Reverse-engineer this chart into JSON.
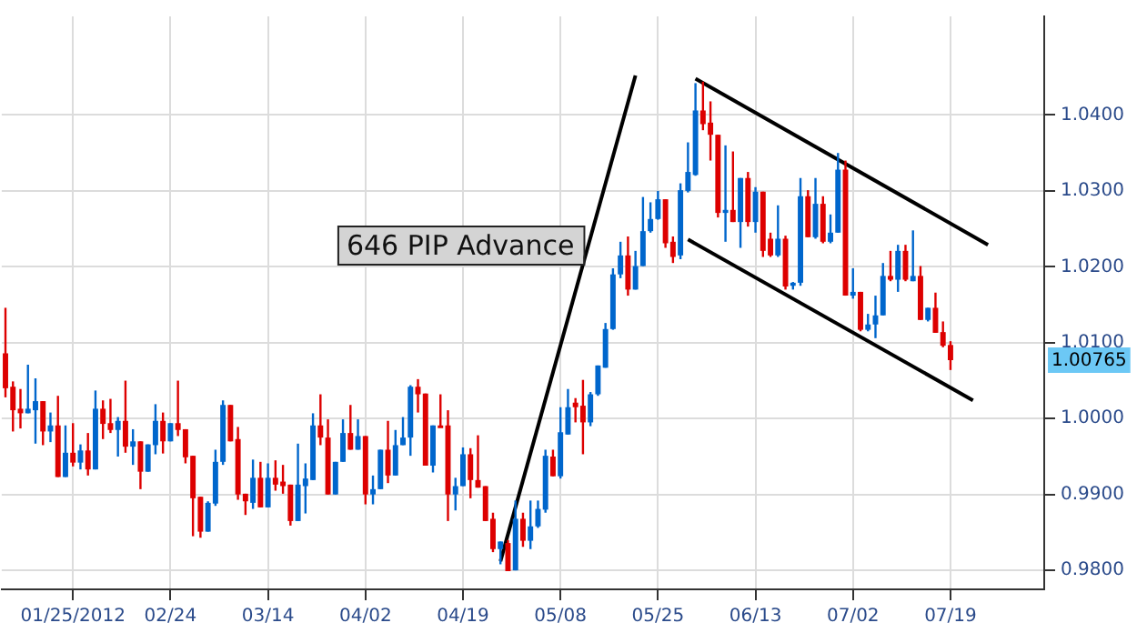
{
  "chart_data": {
    "type": "candlestick",
    "categories": [
      null,
      null,
      null,
      null,
      null,
      null,
      null,
      null,
      null,
      "01/25/2012",
      null,
      null,
      null,
      null,
      null,
      null,
      null,
      null,
      null,
      null,
      null,
      null,
      "02/24",
      null,
      null,
      null,
      null,
      null,
      null,
      null,
      null,
      null,
      null,
      null,
      null,
      "03/14",
      null,
      null,
      null,
      null,
      null,
      null,
      null,
      null,
      null,
      null,
      null,
      null,
      "04/02",
      null,
      null,
      null,
      null,
      null,
      null,
      null,
      null,
      null,
      null,
      null,
      null,
      "04/19",
      null,
      null,
      null,
      null,
      null,
      null,
      null,
      null,
      null,
      null,
      null,
      null,
      "05/08",
      null,
      null,
      null,
      null,
      null,
      null,
      null,
      null,
      null,
      null,
      null,
      null,
      "05/25",
      null,
      null,
      null,
      null,
      null,
      null,
      null,
      null,
      null,
      null,
      null,
      null,
      "06/13",
      null,
      null,
      null,
      null,
      null,
      null,
      null,
      null,
      null,
      null,
      null,
      null,
      "07/02",
      null,
      null,
      null,
      null,
      null,
      null,
      null,
      null,
      null,
      null,
      null,
      null,
      "07/19",
      null,
      null,
      null,
      null,
      null,
      null,
      null,
      null,
      null,
      null,
      null,
      null
    ],
    "ohlc": [
      [
        1.0086,
        1.0146,
        1.0028,
        1.004
      ],
      [
        1.0042,
        1.0049,
        0.9983,
        1.0011
      ],
      [
        1.0013,
        1.0039,
        0.9987,
        1.0007
      ],
      [
        1.0007,
        1.0071,
        1.0007,
        1.0013
      ],
      [
        1.0011,
        1.0053,
        0.9967,
        1.0023
      ],
      [
        1.0023,
        1.0023,
        0.9965,
        0.9983
      ],
      [
        0.9983,
        1.0008,
        0.9969,
        0.9991
      ],
      [
        0.9991,
        1.003,
        0.9923,
        0.9923
      ],
      [
        0.9923,
        0.9991,
        0.9923,
        0.9955
      ],
      [
        0.9955,
        0.9994,
        0.9937,
        0.9942
      ],
      [
        0.9942,
        0.9966,
        0.9933,
        0.9958
      ],
      [
        0.9958,
        0.9981,
        0.9925,
        0.9933
      ],
      [
        0.9933,
        1.0037,
        0.9933,
        1.0013
      ],
      [
        1.0013,
        1.0024,
        0.9973,
        0.9993
      ],
      [
        0.9994,
        1.0026,
        0.9981,
        0.9985
      ],
      [
        0.9985,
        1.0002,
        0.995,
        0.9997
      ],
      [
        0.9997,
        1.005,
        0.9955,
        0.9963
      ],
      [
        0.9963,
        0.9986,
        0.9939,
        0.997
      ],
      [
        0.997,
        0.997,
        0.9907,
        0.993
      ],
      [
        0.993,
        0.9966,
        0.993,
        0.9966
      ],
      [
        0.9965,
        1.0019,
        0.9953,
        0.9997
      ],
      [
        0.9997,
        1.0008,
        0.9954,
        0.997
      ],
      [
        0.997,
        0.9994,
        0.997,
        0.9994
      ],
      [
        0.9994,
        1.005,
        0.9977,
        0.9985
      ],
      [
        0.9986,
        0.9986,
        0.9941,
        0.9949
      ],
      [
        0.9951,
        0.9951,
        0.9845,
        0.9895
      ],
      [
        0.9897,
        0.9897,
        0.9843,
        0.9851
      ],
      [
        0.9851,
        0.9891,
        0.9851,
        0.9889
      ],
      [
        0.9888,
        0.9959,
        0.9885,
        0.9943
      ],
      [
        0.9943,
        1.0024,
        0.9939,
        1.0018
      ],
      [
        1.0018,
        1.0018,
        0.997,
        0.997
      ],
      [
        0.9973,
        0.9989,
        0.9893,
        0.99
      ],
      [
        0.9901,
        0.9901,
        0.9873,
        0.9891
      ],
      [
        0.9889,
        0.9946,
        0.9881,
        0.9922
      ],
      [
        0.9922,
        0.9943,
        0.9883,
        0.9883
      ],
      [
        0.9883,
        0.9941,
        0.9883,
        0.9922
      ],
      [
        0.9922,
        0.9945,
        0.9905,
        0.9913
      ],
      [
        0.9917,
        0.9939,
        0.9901,
        0.9911
      ],
      [
        0.9913,
        0.9913,
        0.9859,
        0.9865
      ],
      [
        0.9865,
        0.9967,
        0.9865,
        0.9913
      ],
      [
        0.9911,
        0.9941,
        0.9875,
        0.9921
      ],
      [
        0.9919,
        1.0007,
        0.9919,
        0.9991
      ],
      [
        0.9991,
        1.0032,
        0.9965,
        0.9975
      ],
      [
        0.9975,
        0.9999,
        0.99,
        0.99
      ],
      [
        0.99,
        0.9943,
        0.99,
        0.9943
      ],
      [
        0.9943,
        0.9999,
        0.9943,
        0.9981
      ],
      [
        0.9981,
        1.0018,
        0.9959,
        0.9959
      ],
      [
        0.9959,
        0.9999,
        0.9959,
        0.9977
      ],
      [
        0.9977,
        0.9977,
        0.9887,
        0.99
      ],
      [
        0.99,
        0.9925,
        0.9887,
        0.9907
      ],
      [
        0.9907,
        0.9959,
        0.9907,
        0.9959
      ],
      [
        0.9959,
        0.9997,
        0.9915,
        0.9925
      ],
      [
        0.9925,
        0.9985,
        0.9925,
        0.9965
      ],
      [
        0.9965,
        1.0002,
        0.9965,
        0.9975
      ],
      [
        0.9975,
        1.0044,
        0.9951,
        1.0042
      ],
      [
        1.0042,
        1.0052,
        1.0008,
        1.0032
      ],
      [
        1.0033,
        1.0033,
        0.9938,
        0.9938
      ],
      [
        0.9938,
        0.9991,
        0.9929,
        0.9991
      ],
      [
        0.9991,
        1.0032,
        0.9989,
        0.9989
      ],
      [
        0.9991,
        1.0011,
        0.9865,
        0.99
      ],
      [
        0.99,
        0.9922,
        0.9879,
        0.9911
      ],
      [
        0.9911,
        0.9962,
        0.9911,
        0.9953
      ],
      [
        0.9953,
        0.9961,
        0.9895,
        0.9919
      ],
      [
        0.9919,
        0.9978,
        0.9909,
        0.9909
      ],
      [
        0.9911,
        0.9911,
        0.9865,
        0.9865
      ],
      [
        0.9868,
        0.9876,
        0.9824,
        0.9828
      ],
      [
        0.9828,
        0.9838,
        0.9808,
        0.9838
      ],
      [
        0.9836,
        0.984,
        0.9799,
        0.9799
      ],
      [
        0.98,
        0.9892,
        0.98,
        0.9868
      ],
      [
        0.9868,
        0.9876,
        0.9831,
        0.9839
      ],
      [
        0.9839,
        0.9892,
        0.9828,
        0.9858
      ],
      [
        0.9858,
        0.9892,
        0.9856,
        0.9881
      ],
      [
        0.988,
        0.9959,
        0.9876,
        0.9951
      ],
      [
        0.995,
        0.9959,
        0.9924,
        0.9924
      ],
      [
        0.9924,
        1.0015,
        0.9921,
        0.9982
      ],
      [
        0.9979,
        1.0039,
        0.9979,
        1.0015
      ],
      [
        1.0021,
        1.0027,
        0.9995,
        1.0015
      ],
      [
        1.0017,
        1.0051,
        0.9953,
        0.9995
      ],
      [
        0.9995,
        1.0035,
        0.999,
        1.0032
      ],
      [
        1.0032,
        1.007,
        1.003,
        1.007
      ],
      [
        1.0067,
        1.0126,
        1.0067,
        1.0118
      ],
      [
        1.0118,
        1.0198,
        1.0117,
        1.019
      ],
      [
        1.019,
        1.0233,
        1.0185,
        1.0215
      ],
      [
        1.0215,
        1.024,
        1.0162,
        1.017
      ],
      [
        1.017,
        1.0221,
        1.017,
        1.0201
      ],
      [
        1.0201,
        1.0292,
        1.0201,
        1.0247
      ],
      [
        1.0247,
        1.0285,
        1.0245,
        1.0263
      ],
      [
        1.0263,
        1.03,
        1.0262,
        1.0289
      ],
      [
        1.0289,
        1.0289,
        1.0225,
        1.0231
      ],
      [
        1.0233,
        1.024,
        1.0205,
        1.0213
      ],
      [
        1.0215,
        1.031,
        1.021,
        1.0301
      ],
      [
        1.03,
        1.0364,
        1.0298,
        1.0325
      ],
      [
        1.0321,
        1.0442,
        1.032,
        1.0406
      ],
      [
        1.0406,
        1.0444,
        1.038,
        1.0388
      ],
      [
        1.039,
        1.0418,
        1.034,
        1.0374
      ],
      [
        1.0374,
        1.0374,
        1.0265,
        1.0271
      ],
      [
        1.0271,
        1.036,
        1.0233,
        1.0275
      ],
      [
        1.0275,
        1.0352,
        1.0259,
        1.0259
      ],
      [
        1.0259,
        1.0317,
        1.0225,
        1.0317
      ],
      [
        1.0317,
        1.0325,
        1.0253,
        1.0259
      ],
      [
        1.0259,
        1.0305,
        1.0245,
        1.0299
      ],
      [
        1.0299,
        1.0299,
        1.0213,
        1.0221
      ],
      [
        1.0237,
        1.0245,
        1.0213,
        1.0215
      ],
      [
        1.0215,
        1.0281,
        1.0213,
        1.0237
      ],
      [
        1.0237,
        1.0241,
        1.017,
        1.0174
      ],
      [
        1.0175,
        1.018,
        1.017,
        1.0179
      ],
      [
        1.0179,
        1.0317,
        1.0175,
        1.0293
      ],
      [
        1.0293,
        1.0301,
        1.0239,
        1.0239
      ],
      [
        1.0239,
        1.0317,
        1.0237,
        1.0283
      ],
      [
        1.0283,
        1.0293,
        1.0231,
        1.0233
      ],
      [
        1.0233,
        1.0269,
        1.0231,
        1.0245
      ],
      [
        1.0245,
        1.035,
        1.0245,
        1.0328
      ],
      [
        1.0328,
        1.034,
        1.0162,
        1.0162
      ],
      [
        1.0162,
        1.0198,
        1.0158,
        1.0167
      ],
      [
        1.0167,
        1.0167,
        1.0115,
        1.0117
      ],
      [
        1.0117,
        1.0138,
        1.0115,
        1.0124
      ],
      [
        1.0124,
        1.0162,
        1.0106,
        1.0136
      ],
      [
        1.0136,
        1.0205,
        1.0136,
        1.0188
      ],
      [
        1.0188,
        1.0221,
        1.0181,
        1.0183
      ],
      [
        1.0183,
        1.0229,
        1.0167,
        1.0221
      ],
      [
        1.0221,
        1.0229,
        1.0181,
        1.0183
      ],
      [
        1.0181,
        1.0248,
        1.0181,
        1.0188
      ],
      [
        1.0188,
        1.0201,
        1.013,
        1.013
      ],
      [
        1.013,
        1.0146,
        1.0128,
        1.0146
      ],
      [
        1.0146,
        1.0166,
        1.0113,
        1.0113
      ],
      [
        1.0114,
        1.0128,
        1.0094,
        1.0096
      ],
      [
        1.0097,
        1.0102,
        1.0064,
        1.0077
      ],
      null,
      null,
      null,
      null,
      null,
      null,
      null,
      null,
      null,
      null,
      null,
      null
    ],
    "colors": [
      "#dd0000",
      "#dd0000",
      "#dd0000",
      "#0066cc",
      "#0066cc",
      "#dd0000",
      "#0066cc",
      "#dd0000",
      "#0066cc",
      "#dd0000",
      "#0066cc",
      "#dd0000",
      "#0066cc",
      "#dd0000",
      "#dd0000",
      "#0066cc",
      "#dd0000",
      "#0066cc",
      "#dd0000",
      "#0066cc",
      "#0066cc",
      "#dd0000",
      "#0066cc",
      "#dd0000",
      "#dd0000",
      "#dd0000",
      "#dd0000",
      "#0066cc",
      "#0066cc",
      "#0066cc",
      "#dd0000",
      "#dd0000",
      "#dd0000",
      "#0066cc",
      "#dd0000",
      "#0066cc",
      "#dd0000",
      "#dd0000",
      "#dd0000",
      "#0066cc",
      "#0066cc",
      "#0066cc",
      "#dd0000",
      "#dd0000",
      "#0066cc",
      "#0066cc",
      "#dd0000",
      "#0066cc",
      "#dd0000",
      "#0066cc",
      "#0066cc",
      "#dd0000",
      "#0066cc",
      "#0066cc",
      "#0066cc",
      "#dd0000",
      "#dd0000",
      "#0066cc",
      "#dd0000",
      "#dd0000",
      "#0066cc",
      "#0066cc",
      "#dd0000",
      "#dd0000",
      "#dd0000",
      "#dd0000",
      "#0066cc",
      "#dd0000",
      "#0066cc",
      "#dd0000",
      "#0066cc",
      "#0066cc",
      "#0066cc",
      "#dd0000",
      "#0066cc",
      "#0066cc",
      "#dd0000",
      "#dd0000",
      "#0066cc",
      "#0066cc",
      "#0066cc",
      "#0066cc",
      "#0066cc",
      "#dd0000",
      "#0066cc",
      "#0066cc",
      "#0066cc",
      "#0066cc",
      "#dd0000",
      "#dd0000",
      "#0066cc",
      "#0066cc",
      "#0066cc",
      "#dd0000",
      "#dd0000",
      "#dd0000",
      "#0066cc",
      "#dd0000",
      "#0066cc",
      "#dd0000",
      "#0066cc",
      "#dd0000",
      "#dd0000",
      "#0066cc",
      "#dd0000",
      "#0066cc",
      "#0066cc",
      "#dd0000",
      "#0066cc",
      "#dd0000",
      "#0066cc",
      "#0066cc",
      "#dd0000",
      "#0066cc",
      "#dd0000",
      "#0066cc",
      "#0066cc",
      "#0066cc",
      "#dd0000",
      "#0066cc",
      "#dd0000",
      "#0066cc",
      "#dd0000",
      "#0066cc",
      "#dd0000",
      "#dd0000",
      "#dd0000",
      null,
      null,
      null,
      null,
      null,
      null,
      null,
      null,
      null,
      null,
      null,
      null
    ],
    "series": [
      {
        "type": "line",
        "color": "#000000",
        "values": [
          null,
          null,
          null,
          null,
          null,
          null,
          null,
          null,
          null,
          null,
          null,
          null,
          null,
          null,
          null,
          null,
          null,
          null,
          null,
          null,
          null,
          null,
          null,
          null,
          null,
          null,
          null,
          null,
          null,
          null,
          null,
          null,
          null,
          null,
          null,
          null,
          null,
          null,
          null,
          null,
          null,
          null,
          null,
          null,
          null,
          null,
          null,
          null,
          null,
          null,
          null,
          null,
          null,
          null,
          null,
          null,
          null,
          null,
          null,
          null,
          null,
          null,
          null,
          null,
          null,
          null,
          0.9812,
          null,
          null,
          null,
          null,
          null,
          null,
          null,
          null,
          null,
          null,
          null,
          null,
          null,
          null,
          null,
          null,
          null,
          1.0452,
          null,
          null,
          null,
          null,
          null,
          null,
          null,
          null,
          null,
          null,
          null,
          null,
          null,
          null,
          null,
          null,
          null,
          null,
          null,
          null,
          null,
          null,
          null,
          null,
          null,
          null,
          null,
          null,
          null,
          null,
          null,
          null,
          null,
          null,
          null,
          null,
          null,
          null,
          null,
          null,
          null,
          null,
          null,
          null,
          null,
          null,
          null,
          null,
          null,
          null,
          null,
          null,
          null,
          null
        ]
      },
      {
        "type": "line",
        "color": "#000000",
        "values": [
          null,
          null,
          null,
          null,
          null,
          null,
          null,
          null,
          null,
          null,
          null,
          null,
          null,
          null,
          null,
          null,
          null,
          null,
          null,
          null,
          null,
          null,
          null,
          null,
          null,
          null,
          null,
          null,
          null,
          null,
          null,
          null,
          null,
          null,
          null,
          null,
          null,
          null,
          null,
          null,
          null,
          null,
          null,
          null,
          null,
          null,
          null,
          null,
          null,
          null,
          null,
          null,
          null,
          null,
          null,
          null,
          null,
          null,
          null,
          null,
          null,
          null,
          null,
          null,
          null,
          null,
          null,
          null,
          null,
          null,
          null,
          null,
          null,
          null,
          null,
          null,
          null,
          null,
          null,
          null,
          null,
          null,
          null,
          null,
          null,
          null,
          null,
          null,
          null,
          null,
          null,
          null,
          1.0448,
          null,
          null,
          null,
          null,
          null,
          null,
          null,
          null,
          null,
          null,
          null,
          null,
          null,
          null,
          null,
          null,
          null,
          null,
          null,
          null,
          null,
          null,
          null,
          null,
          null,
          null,
          null,
          null,
          null,
          null,
          null,
          null,
          null,
          null,
          null,
          null,
          null,
          null,
          1.0229,
          null,
          null,
          null,
          null,
          null,
          null,
          null
        ]
      },
      {
        "type": "line",
        "color": "#000000",
        "values": [
          null,
          null,
          null,
          null,
          null,
          null,
          null,
          null,
          null,
          null,
          null,
          null,
          null,
          null,
          null,
          null,
          null,
          null,
          null,
          null,
          null,
          null,
          null,
          null,
          null,
          null,
          null,
          null,
          null,
          null,
          null,
          null,
          null,
          null,
          null,
          null,
          null,
          null,
          null,
          null,
          null,
          null,
          null,
          null,
          null,
          null,
          null,
          null,
          null,
          null,
          null,
          null,
          null,
          null,
          null,
          null,
          null,
          null,
          null,
          null,
          null,
          null,
          null,
          null,
          null,
          null,
          null,
          null,
          null,
          null,
          null,
          null,
          null,
          null,
          null,
          null,
          null,
          null,
          null,
          null,
          null,
          null,
          null,
          null,
          null,
          null,
          null,
          null,
          null,
          null,
          null,
          1.0236,
          null,
          null,
          null,
          null,
          null,
          null,
          null,
          null,
          null,
          null,
          null,
          null,
          null,
          null,
          null,
          null,
          null,
          null,
          null,
          null,
          null,
          null,
          null,
          null,
          null,
          null,
          null,
          null,
          null,
          null,
          null,
          null,
          null,
          null,
          null,
          null,
          null,
          1.0024,
          null,
          null,
          null,
          null,
          null,
          null,
          null,
          null,
          null
        ]
      }
    ],
    "ylim": [
      0.9775,
      1.053
    ],
    "yticks": [
      {
        "value": 0.98,
        "label": "0.9800"
      },
      {
        "value": 0.99,
        "label": "0.9900"
      },
      {
        "value": 1.0,
        "label": "1.0000"
      },
      {
        "value": 1.01,
        "label": "1.0100"
      },
      {
        "value": 1.02,
        "label": "1.0200"
      },
      {
        "value": 1.03,
        "label": "1.0300"
      },
      {
        "value": 1.04,
        "label": "1.0400"
      }
    ],
    "grid": true,
    "legend": false,
    "annotations": [
      "646 PIP Advance",
      "1.00765"
    ]
  }
}
